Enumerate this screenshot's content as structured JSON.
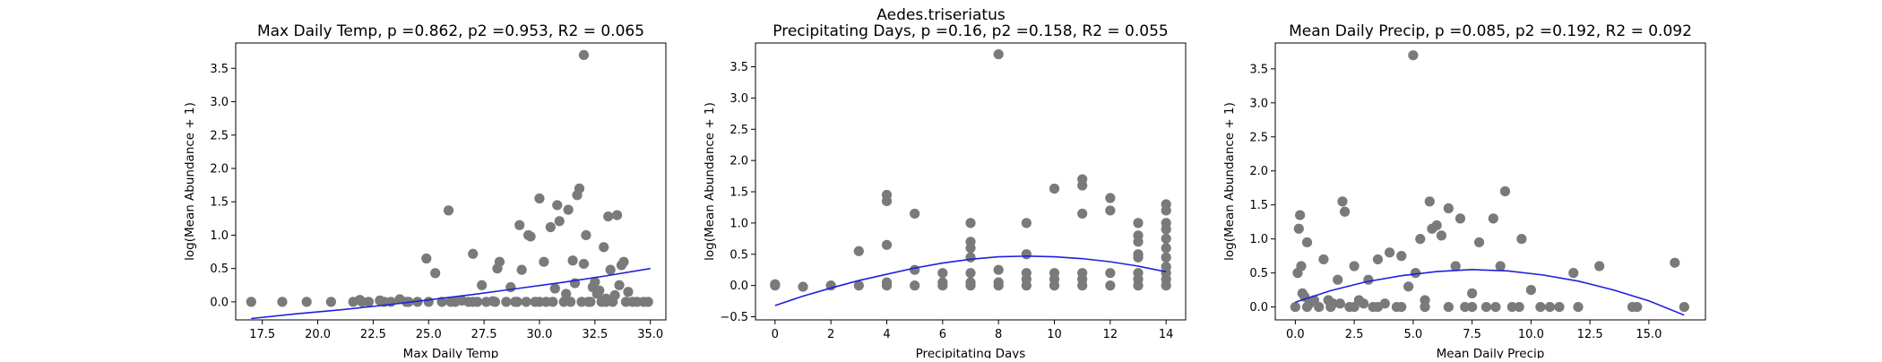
{
  "figure": {
    "suptitle": "Aedes.triseriatus",
    "point_color": "#7a7a7a",
    "fit_color": "#1f1fdc"
  },
  "chart_data": [
    {
      "type": "scatter",
      "title": "Max Daily Temp, p =0.862, p2 =0.953, R2 = 0.065",
      "xlabel": "Max Daily Temp",
      "ylabel": "log(Mean Abundance + 1)",
      "xlim": [
        16.3,
        35.7
      ],
      "ylim": [
        -0.27,
        3.88
      ],
      "xticks": [
        17.5,
        20.0,
        22.5,
        25.0,
        27.5,
        30.0,
        32.5,
        35.0
      ],
      "xtick_labels": [
        "17.5",
        "20.0",
        "22.5",
        "25.0",
        "27.5",
        "30.0",
        "32.5",
        "35.0"
      ],
      "yticks": [
        0.0,
        0.5,
        1.0,
        1.5,
        2.0,
        2.5,
        3.0,
        3.5
      ],
      "ytick_labels": [
        "0.0",
        "0.5",
        "1.0",
        "1.5",
        "2.0",
        "2.5",
        "3.0",
        "3.5"
      ],
      "points": [
        [
          17.0,
          0.0
        ],
        [
          18.4,
          0.0
        ],
        [
          19.5,
          0.0
        ],
        [
          20.6,
          0.0
        ],
        [
          21.6,
          0.0
        ],
        [
          21.9,
          0.03
        ],
        [
          22.3,
          0.0
        ],
        [
          22.8,
          0.02
        ],
        [
          23.3,
          0.0
        ],
        [
          23.7,
          0.04
        ],
        [
          24.1,
          0.0
        ],
        [
          24.5,
          0.0
        ],
        [
          24.9,
          0.65
        ],
        [
          25.0,
          0.0
        ],
        [
          25.3,
          0.43
        ],
        [
          25.6,
          0.0
        ],
        [
          25.9,
          1.37
        ],
        [
          26.2,
          0.0
        ],
        [
          26.5,
          0.02
        ],
        [
          26.8,
          0.0
        ],
        [
          27.0,
          0.72
        ],
        [
          27.2,
          0.0
        ],
        [
          27.4,
          0.25
        ],
        [
          27.6,
          0.0
        ],
        [
          27.9,
          0.01
        ],
        [
          28.1,
          0.5
        ],
        [
          28.2,
          0.6
        ],
        [
          28.5,
          0.0
        ],
        [
          28.7,
          0.22
        ],
        [
          28.9,
          0.0
        ],
        [
          29.1,
          1.15
        ],
        [
          29.2,
          0.48
        ],
        [
          29.4,
          0.0
        ],
        [
          29.5,
          1.0
        ],
        [
          29.6,
          0.98
        ],
        [
          29.8,
          0.0
        ],
        [
          30.0,
          1.55
        ],
        [
          30.2,
          0.6
        ],
        [
          30.3,
          0.0
        ],
        [
          30.5,
          1.12
        ],
        [
          30.7,
          0.2
        ],
        [
          30.8,
          1.45
        ],
        [
          30.9,
          1.21
        ],
        [
          31.1,
          0.0
        ],
        [
          31.2,
          0.12
        ],
        [
          31.3,
          1.38
        ],
        [
          31.5,
          0.62
        ],
        [
          31.6,
          0.28
        ],
        [
          31.7,
          1.6
        ],
        [
          31.8,
          1.7
        ],
        [
          31.9,
          0.0
        ],
        [
          32.0,
          0.57
        ],
        [
          32.0,
          3.7
        ],
        [
          32.1,
          1.0
        ],
        [
          32.3,
          0.0
        ],
        [
          32.4,
          0.22
        ],
        [
          32.5,
          0.3
        ],
        [
          32.6,
          0.12
        ],
        [
          32.7,
          0.17
        ],
        [
          32.8,
          0.0
        ],
        [
          32.9,
          0.82
        ],
        [
          33.0,
          0.05
        ],
        [
          33.1,
          1.28
        ],
        [
          33.2,
          0.48
        ],
        [
          33.3,
          0.0
        ],
        [
          33.4,
          0.1
        ],
        [
          33.5,
          1.3
        ],
        [
          33.6,
          0.25
        ],
        [
          33.7,
          0.55
        ],
        [
          33.8,
          0.6
        ],
        [
          33.9,
          0.0
        ],
        [
          34.0,
          0.15
        ],
        [
          34.2,
          0.0
        ],
        [
          34.4,
          0.0
        ],
        [
          34.7,
          0.0
        ],
        [
          34.9,
          0.0
        ],
        [
          22.0,
          0.0
        ],
        [
          23.0,
          0.0
        ],
        [
          24.0,
          0.0
        ],
        [
          26.0,
          0.0
        ],
        [
          27.0,
          0.0
        ],
        [
          28.0,
          0.0
        ],
        [
          29.0,
          0.0
        ],
        [
          30.0,
          0.0
        ],
        [
          30.6,
          0.0
        ],
        [
          31.4,
          0.0
        ],
        [
          32.2,
          0.0
        ],
        [
          33.0,
          0.0
        ]
      ],
      "fit": {
        "x": [
          17.0,
          19.0,
          21.0,
          23.0,
          25.0,
          27.0,
          29.0,
          31.0,
          33.0,
          35.0
        ],
        "y": [
          -0.25,
          -0.18,
          -0.12,
          -0.05,
          0.03,
          0.11,
          0.2,
          0.29,
          0.39,
          0.5
        ]
      }
    },
    {
      "type": "scatter",
      "title": "Precipitating Days, p =0.16, p2 =0.158, R2 = 0.055",
      "xlabel": "Precipitating Days",
      "ylabel": "log(Mean Abundance + 1)",
      "xlim": [
        -0.7,
        14.7
      ],
      "ylim": [
        -0.55,
        3.88
      ],
      "xticks": [
        0,
        2,
        4,
        6,
        8,
        10,
        12,
        14
      ],
      "xtick_labels": [
        "0",
        "2",
        "4",
        "6",
        "8",
        "10",
        "12",
        "14"
      ],
      "yticks": [
        -0.5,
        0.0,
        0.5,
        1.0,
        1.5,
        2.0,
        2.5,
        3.0,
        3.5
      ],
      "ytick_labels": [
        "−0.5",
        "0.0",
        "0.5",
        "1.0",
        "1.5",
        "2.0",
        "2.5",
        "3.0",
        "3.5"
      ],
      "points": [
        [
          0,
          0.0
        ],
        [
          0,
          0.02
        ],
        [
          1,
          -0.02
        ],
        [
          2,
          0.0
        ],
        [
          3,
          0.55
        ],
        [
          3,
          0.0
        ],
        [
          4,
          1.45
        ],
        [
          4,
          1.35
        ],
        [
          4,
          0.65
        ],
        [
          4,
          0.05
        ],
        [
          4,
          0.0
        ],
        [
          5,
          1.15
        ],
        [
          5,
          0.25
        ],
        [
          5,
          0.0
        ],
        [
          6,
          0.2
        ],
        [
          6,
          0.0
        ],
        [
          6,
          0.05
        ],
        [
          7,
          1.0
        ],
        [
          7,
          0.7
        ],
        [
          7,
          0.6
        ],
        [
          7,
          0.45
        ],
        [
          7,
          0.2
        ],
        [
          7,
          0.05
        ],
        [
          7,
          0.0
        ],
        [
          8,
          3.7
        ],
        [
          8,
          0.25
        ],
        [
          8,
          0.05
        ],
        [
          8,
          0.0
        ],
        [
          9,
          1.0
        ],
        [
          9,
          0.5
        ],
        [
          9,
          0.2
        ],
        [
          9,
          0.1
        ],
        [
          9,
          0.0
        ],
        [
          10,
          1.55
        ],
        [
          10,
          0.2
        ],
        [
          10,
          0.1
        ],
        [
          10,
          0.0
        ],
        [
          11,
          1.7
        ],
        [
          11,
          1.6
        ],
        [
          11,
          1.15
        ],
        [
          11,
          0.2
        ],
        [
          11,
          0.1
        ],
        [
          11,
          0.0
        ],
        [
          12,
          1.4
        ],
        [
          12,
          1.2
        ],
        [
          12,
          0.2
        ],
        [
          12,
          0.0
        ],
        [
          13,
          1.0
        ],
        [
          13,
          0.8
        ],
        [
          13,
          0.7
        ],
        [
          13,
          0.5
        ],
        [
          13,
          0.45
        ],
        [
          13,
          0.2
        ],
        [
          13,
          0.1
        ],
        [
          13,
          0.0
        ],
        [
          14,
          1.3
        ],
        [
          14,
          1.2
        ],
        [
          14,
          1.0
        ],
        [
          14,
          0.9
        ],
        [
          14,
          0.75
        ],
        [
          14,
          0.6
        ],
        [
          14,
          0.45
        ],
        [
          14,
          0.3
        ],
        [
          14,
          0.2
        ],
        [
          14,
          0.1
        ],
        [
          14,
          0.0
        ]
      ],
      "fit": {
        "x": [
          0,
          1,
          2,
          3,
          4,
          5,
          6,
          7,
          8,
          9,
          10,
          11,
          12,
          13,
          14
        ],
        "y": [
          -0.32,
          -0.17,
          -0.04,
          0.08,
          0.18,
          0.28,
          0.36,
          0.42,
          0.46,
          0.47,
          0.46,
          0.43,
          0.38,
          0.31,
          0.22
        ]
      }
    },
    {
      "type": "scatter",
      "title": "Mean Daily Precip, p =0.085, p2 =0.192, R2 = 0.092",
      "xlabel": "Mean Daily Precip",
      "ylabel": "log(Mean Abundance + 1)",
      "xlim": [
        -0.85,
        17.4
      ],
      "ylim": [
        -0.19,
        3.88
      ],
      "xticks": [
        0.0,
        2.5,
        5.0,
        7.5,
        10.0,
        12.5,
        15.0
      ],
      "xtick_labels": [
        "0.0",
        "2.5",
        "5.0",
        "7.5",
        "10.0",
        "12.5",
        "15.0"
      ],
      "yticks": [
        0.0,
        0.5,
        1.0,
        1.5,
        2.0,
        2.5,
        3.0,
        3.5
      ],
      "ytick_labels": [
        "0.0",
        "0.5",
        "1.0",
        "1.5",
        "2.0",
        "2.5",
        "3.0",
        "3.5"
      ],
      "points": [
        [
          0.0,
          0.0
        ],
        [
          0.1,
          0.5
        ],
        [
          0.15,
          1.15
        ],
        [
          0.2,
          1.35
        ],
        [
          0.25,
          0.6
        ],
        [
          0.3,
          0.2
        ],
        [
          0.4,
          0.15
        ],
        [
          0.5,
          0.95
        ],
        [
          0.6,
          0.05
        ],
        [
          0.8,
          0.1
        ],
        [
          1.0,
          0.0
        ],
        [
          1.2,
          0.7
        ],
        [
          1.4,
          0.1
        ],
        [
          1.6,
          0.05
        ],
        [
          1.8,
          0.4
        ],
        [
          1.9,
          0.05
        ],
        [
          2.0,
          1.55
        ],
        [
          2.1,
          1.4
        ],
        [
          2.3,
          0.0
        ],
        [
          2.5,
          0.6
        ],
        [
          2.7,
          0.1
        ],
        [
          2.9,
          0.05
        ],
        [
          3.1,
          0.4
        ],
        [
          3.3,
          0.0
        ],
        [
          3.5,
          0.7
        ],
        [
          3.8,
          0.05
        ],
        [
          4.0,
          0.8
        ],
        [
          4.3,
          0.0
        ],
        [
          4.5,
          0.75
        ],
        [
          4.8,
          0.3
        ],
        [
          5.0,
          3.7
        ],
        [
          5.1,
          0.5
        ],
        [
          5.3,
          1.0
        ],
        [
          5.5,
          0.1
        ],
        [
          5.7,
          1.55
        ],
        [
          5.8,
          1.15
        ],
        [
          6.0,
          1.2
        ],
        [
          6.2,
          1.05
        ],
        [
          6.5,
          1.45
        ],
        [
          6.8,
          0.6
        ],
        [
          7.0,
          1.3
        ],
        [
          7.2,
          0.0
        ],
        [
          7.5,
          0.2
        ],
        [
          7.8,
          0.95
        ],
        [
          8.1,
          0.0
        ],
        [
          8.4,
          1.3
        ],
        [
          8.7,
          0.6
        ],
        [
          8.9,
          1.7
        ],
        [
          9.2,
          0.0
        ],
        [
          9.6,
          1.0
        ],
        [
          10.0,
          0.25
        ],
        [
          10.4,
          0.0
        ],
        [
          10.8,
          0.0
        ],
        [
          11.2,
          0.0
        ],
        [
          11.8,
          0.5
        ],
        [
          12.0,
          0.0
        ],
        [
          12.9,
          0.6
        ],
        [
          14.3,
          0.0
        ],
        [
          14.5,
          0.0
        ],
        [
          16.1,
          0.65
        ],
        [
          16.5,
          0.0
        ],
        [
          0.5,
          0.0
        ],
        [
          1.5,
          0.0
        ],
        [
          2.5,
          0.0
        ],
        [
          3.5,
          0.0
        ],
        [
          4.5,
          0.0
        ],
        [
          5.5,
          0.0
        ],
        [
          6.5,
          0.0
        ],
        [
          7.5,
          0.0
        ],
        [
          8.5,
          0.0
        ],
        [
          9.5,
          0.0
        ]
      ],
      "fit": {
        "x": [
          0.0,
          1.5,
          3.0,
          4.5,
          6.0,
          7.5,
          9.0,
          10.5,
          12.0,
          13.5,
          15.0,
          16.5
        ],
        "y": [
          0.07,
          0.24,
          0.37,
          0.46,
          0.52,
          0.55,
          0.53,
          0.47,
          0.38,
          0.25,
          0.09,
          -0.12
        ]
      }
    }
  ]
}
